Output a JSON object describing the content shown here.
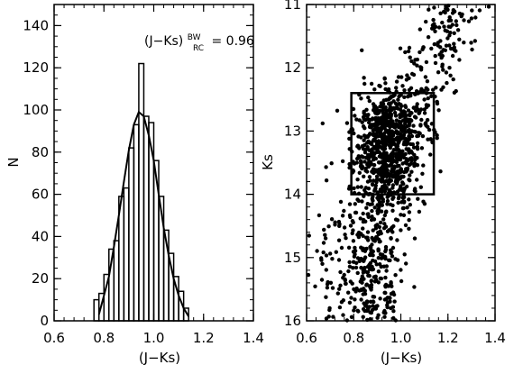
{
  "chart_data": [
    {
      "type": "bar",
      "xlabel": "(J−Ks)",
      "ylabel": "N",
      "xlim": [
        0.6,
        1.4
      ],
      "ylim": [
        0,
        150
      ],
      "xticks": [
        "0.6",
        "0.8",
        "1.0",
        "1.2",
        "1.4"
      ],
      "yticks": [
        "0",
        "20",
        "40",
        "60",
        "80",
        "100",
        "120",
        "140"
      ],
      "annotation": {
        "prefix": "(J−Ks)",
        "superscript": "BW",
        "subscript": "RC",
        "suffix": "= 0.96"
      },
      "histogram": {
        "bin_edges": [
          0.76,
          0.78,
          0.8,
          0.82,
          0.84,
          0.86,
          0.88,
          0.9,
          0.92,
          0.94,
          0.96,
          0.98,
          1.0,
          1.02,
          1.04,
          1.06,
          1.08,
          1.1,
          1.12,
          1.14
        ],
        "counts": [
          10,
          13,
          22,
          34,
          38,
          59,
          63,
          82,
          93,
          122,
          97,
          94,
          76,
          59,
          43,
          32,
          21,
          14,
          6
        ]
      },
      "gaussian_fit": {
        "x": [
          0.78,
          0.8,
          0.82,
          0.84,
          0.86,
          0.88,
          0.9,
          0.92,
          0.94,
          0.96,
          0.98,
          1.0,
          1.02,
          1.04,
          1.06,
          1.08,
          1.1,
          1.12,
          1.14
        ],
        "y": [
          3,
          12,
          21,
          35,
          50,
          66,
          81,
          93,
          99,
          97,
          88,
          76,
          60,
          44,
          31,
          20,
          12,
          6,
          2
        ]
      }
    },
    {
      "type": "scatter",
      "xlabel": "(J−Ks)",
      "ylabel": "Ks",
      "xlim": [
        0.6,
        1.4
      ],
      "ylim": [
        16,
        11
      ],
      "xticks": [
        "0.6",
        "0.8",
        "1.0",
        "1.2",
        "1.4"
      ],
      "yticks": [
        "11",
        "12",
        "13",
        "14",
        "15",
        "16"
      ],
      "selection_box": {
        "x0": 0.79,
        "x1": 1.14,
        "y0": 12.4,
        "y1": 14.0
      },
      "point_count": 1400,
      "point_color": "#000000"
    }
  ]
}
